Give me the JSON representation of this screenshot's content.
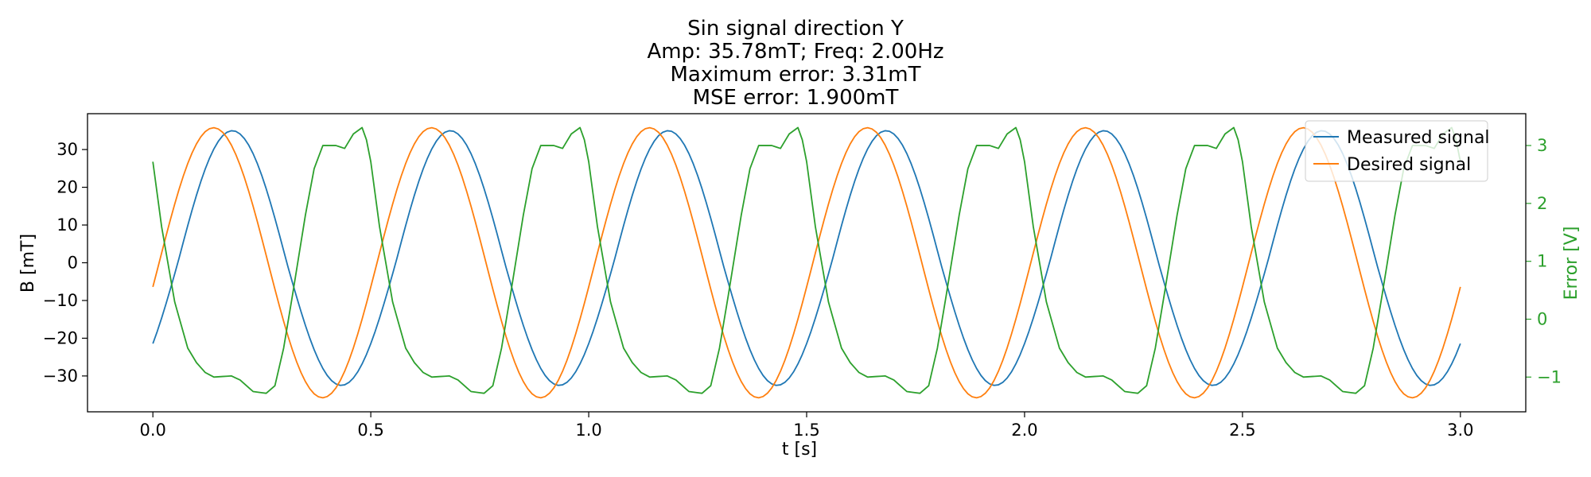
{
  "chart_data": {
    "type": "line",
    "title": [
      "Sin signal direction Y",
      "Amp: 35.78mT; Freq: 2.00Hz",
      "Maximum error: 3.31mT",
      "MSE error: 1.900mT"
    ],
    "xlabel": "t [s]",
    "ylabel": "B [mT]",
    "y2label": "Error [V]",
    "xlim": [
      -0.15,
      3.15
    ],
    "ylim": [
      -39.5,
      39.5
    ],
    "y2lim": [
      -1.6,
      3.55
    ],
    "xticks": [
      0.0,
      0.5,
      1.0,
      1.5,
      2.0,
      2.5,
      3.0
    ],
    "xticklabels": [
      "0.0",
      "0.5",
      "1.0",
      "1.5",
      "2.0",
      "2.5",
      "3.0"
    ],
    "yticks": [
      30,
      20,
      10,
      0,
      -10,
      -20,
      -30
    ],
    "yticklabels": [
      "30",
      "20",
      "10",
      "0",
      "−10",
      "−20",
      "−30"
    ],
    "y2ticks": [
      3,
      2,
      1,
      0,
      -1
    ],
    "y2ticklabels": [
      "3",
      "2",
      "1",
      "0",
      "−1"
    ],
    "grid": false,
    "legend_position": "upper-right",
    "sample_period_s": 0.01,
    "t_end_s": 3.0,
    "series": [
      {
        "name": "Measured signal",
        "axis": "left",
        "color": "#1f77b4",
        "model": "sine",
        "amplitude_pos": 35.0,
        "amplitude_neg": 32.5,
        "freq_hz": 2.0,
        "phase_rad": -0.72,
        "offset": 0
      },
      {
        "name": "Desired signal",
        "axis": "left",
        "color": "#ff7f0e",
        "model": "sine",
        "amplitude_pos": 35.78,
        "amplitude_neg": 35.78,
        "freq_hz": 2.0,
        "phase_rad": -0.18,
        "offset": 0
      },
      {
        "name": "Error",
        "axis": "right",
        "color": "#2ca02c",
        "model": "periodic",
        "period_s": 0.5,
        "shape_points": [
          [
            0.0,
            2.72
          ],
          [
            0.02,
            1.6
          ],
          [
            0.05,
            0.3
          ],
          [
            0.08,
            -0.5
          ],
          [
            0.1,
            -0.75
          ],
          [
            0.12,
            -0.92
          ],
          [
            0.14,
            -1.0
          ],
          [
            0.18,
            -0.98
          ],
          [
            0.2,
            -1.05
          ],
          [
            0.23,
            -1.25
          ],
          [
            0.26,
            -1.28
          ],
          [
            0.28,
            -1.15
          ],
          [
            0.3,
            -0.5
          ],
          [
            0.32,
            0.4
          ],
          [
            0.35,
            1.8
          ],
          [
            0.37,
            2.6
          ],
          [
            0.39,
            3.0
          ],
          [
            0.42,
            3.0
          ],
          [
            0.44,
            2.95
          ],
          [
            0.46,
            3.2
          ],
          [
            0.48,
            3.31
          ],
          [
            0.49,
            3.1
          ],
          [
            0.5,
            2.72
          ]
        ]
      }
    ]
  }
}
